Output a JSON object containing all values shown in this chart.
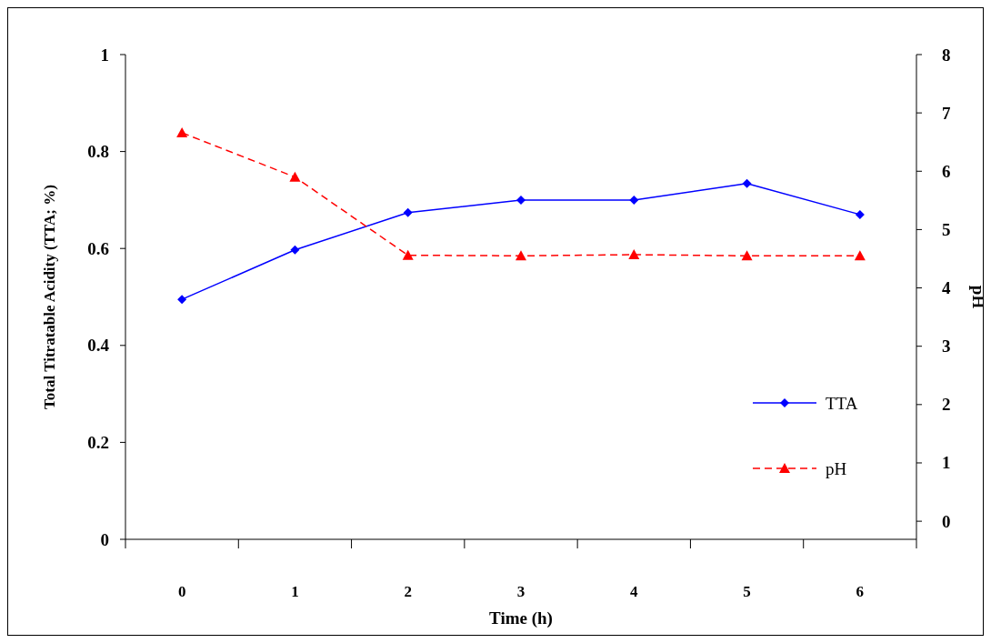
{
  "chart_data": {
    "type": "line",
    "xlabel": "Time (h)",
    "ylabel": "Total Titratable Acidity (TTA; %)",
    "y2label": "pH",
    "categories": [
      "0",
      "1",
      "2",
      "3",
      "4",
      "5",
      "6"
    ],
    "ylim": [
      0,
      1
    ],
    "yticks": [
      0,
      0.2,
      0.4,
      0.6,
      0.8,
      1
    ],
    "y2lim": [
      -0.31,
      8
    ],
    "y2ticks": [
      0,
      1,
      2,
      3,
      4,
      5,
      6,
      7,
      8
    ],
    "series": [
      {
        "name": "TTA",
        "color": "#0000ff",
        "marker": "diamond",
        "line_style": "solid",
        "values": [
          0.495,
          0.597,
          0.674,
          0.7,
          0.7,
          0.734,
          0.67
        ]
      },
      {
        "name": "pH",
        "color": "#ff0000",
        "marker": "triangle",
        "line_style": "dashed",
        "axis": "y2",
        "values": [
          6.66,
          5.9,
          4.56,
          4.55,
          4.57,
          4.55,
          4.55
        ]
      }
    ],
    "legend": "right",
    "grid": false
  }
}
